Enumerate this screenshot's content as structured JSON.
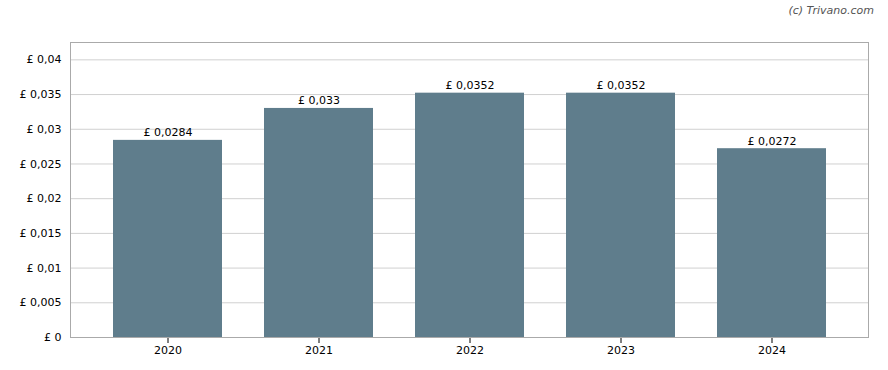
{
  "chart_data": {
    "type": "bar",
    "categories": [
      "2020",
      "2021",
      "2022",
      "2023",
      "2024"
    ],
    "values": [
      0.0284,
      0.033,
      0.0352,
      0.0352,
      0.0272
    ],
    "value_labels": [
      "£ 0,0284",
      "£ 0,033",
      "£ 0,0352",
      "£ 0,0352",
      "£ 0,0272"
    ],
    "color": "#5f7d8c",
    "ylim": [
      0,
      0.0425
    ],
    "yticks": [
      {
        "value": 0,
        "label": "£ 0"
      },
      {
        "value": 0.005,
        "label": "£ 0,005"
      },
      {
        "value": 0.01,
        "label": "£ 0,01"
      },
      {
        "value": 0.015,
        "label": "£ 0,015"
      },
      {
        "value": 0.02,
        "label": "£ 0,02"
      },
      {
        "value": 0.025,
        "label": "£ 0,025"
      },
      {
        "value": 0.03,
        "label": "£ 0,03"
      },
      {
        "value": 0.035,
        "label": "£ 0,035"
      },
      {
        "value": 0.04,
        "label": "£ 0,04"
      }
    ],
    "grid": true,
    "data_labels": true,
    "annotations": [
      "(c) Trivano.com"
    ]
  }
}
